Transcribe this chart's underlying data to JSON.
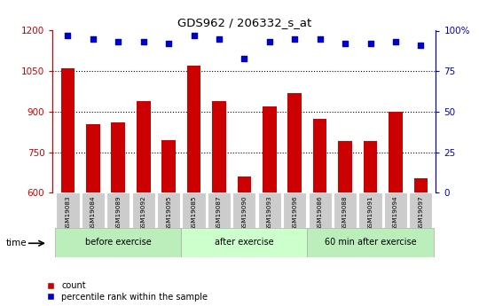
{
  "title": "GDS962 / 206332_s_at",
  "categories": [
    "GSM19083",
    "GSM19084",
    "GSM19089",
    "GSM19092",
    "GSM19095",
    "GSM19085",
    "GSM19087",
    "GSM19090",
    "GSM19093",
    "GSM19096",
    "GSM19086",
    "GSM19088",
    "GSM19091",
    "GSM19094",
    "GSM19097"
  ],
  "counts": [
    1060,
    855,
    860,
    940,
    795,
    1070,
    940,
    660,
    920,
    970,
    875,
    790,
    790,
    900,
    655
  ],
  "percentile": [
    97,
    95,
    93,
    93,
    92,
    97,
    95,
    83,
    93,
    95,
    95,
    92,
    92,
    93,
    91
  ],
  "groups": [
    {
      "label": "before exercise",
      "start": 0,
      "end": 5
    },
    {
      "label": "after exercise",
      "start": 5,
      "end": 10
    },
    {
      "label": "60 min after exercise",
      "start": 10,
      "end": 15
    }
  ],
  "ylim_left": [
    600,
    1200
  ],
  "ylim_right": [
    0,
    100
  ],
  "yticks_left": [
    600,
    750,
    900,
    1050,
    1200
  ],
  "yticks_right": [
    0,
    25,
    50,
    75,
    100
  ],
  "bar_color": "#cc0000",
  "dot_color": "#0000cc",
  "legend_count": "count",
  "legend_pct": "percentile rank within the sample",
  "left_axis_color": "#cc0000",
  "right_axis_color": "#0000cc",
  "group_colors": [
    "#bbeebb",
    "#ccffcc",
    "#bbeebb"
  ]
}
